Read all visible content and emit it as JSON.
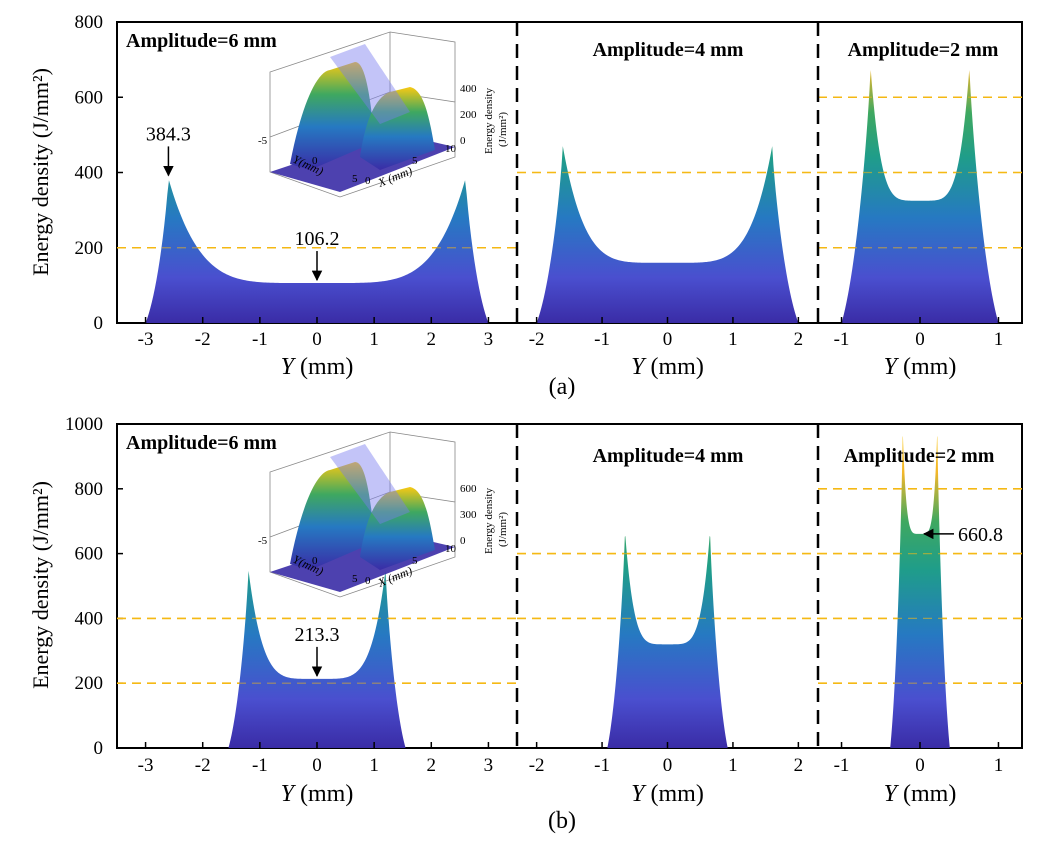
{
  "y_axis_label": "Energy density (J/mm²)",
  "x_axis_label_var": "Y",
  "x_axis_label_unit": " (mm)",
  "chart_data": [
    {
      "type": "area",
      "caption": "(a)",
      "ylim": [
        0,
        800
      ],
      "yticks": [
        "0",
        "200",
        "400",
        "600",
        "800"
      ],
      "panels": [
        {
          "title": "Amplitude=6 mm",
          "xlim": [
            -3.5,
            3.5
          ],
          "xticks": [
            "-3",
            "-2",
            "-1",
            "0",
            "1",
            "2",
            "3"
          ],
          "peak": {
            "x": 2.6,
            "y": 384.3
          },
          "center": {
            "x": 0,
            "y": 106.2
          },
          "edge": 3.0,
          "reference_lines": [
            200
          ],
          "annotations": [
            {
              "text": "384.3",
              "x": -2.6,
              "y": 384.3
            },
            {
              "text": "106.2",
              "x": 0,
              "y": 106.2
            }
          ],
          "inset": {
            "zlabel": "Energy density",
            "zunit": "(J/mm²)",
            "zticks": [
              "400",
              "200",
              "0"
            ],
            "ylabel": "Y(mm)",
            "xlabel": "X (mm)",
            "yticks": [
              "-5",
              "0",
              "5"
            ],
            "xticks": [
              "0",
              "5",
              "10"
            ]
          }
        },
        {
          "title": "Amplitude=4 mm",
          "xlim": [
            -2.3,
            2.3
          ],
          "xticks": [
            "-2",
            "-1",
            "0",
            "1",
            "2"
          ],
          "peak": {
            "x": 1.6,
            "y": 470
          },
          "center": {
            "x": 0,
            "y": 160
          },
          "edge": 2.0,
          "reference_lines": [
            400
          ]
        },
        {
          "title": "Amplitude=2 mm",
          "xlim": [
            -1.3,
            1.3
          ],
          "xticks": [
            "-1",
            "0",
            "1"
          ],
          "peak": {
            "x": 0.63,
            "y": 680
          },
          "center": {
            "x": 0,
            "y": 325
          },
          "edge": 1.0,
          "reference_lines": [
            200,
            400,
            600
          ]
        }
      ]
    },
    {
      "type": "area",
      "caption": "(b)",
      "ylim": [
        0,
        1000
      ],
      "yticks": [
        "0",
        "200",
        "400",
        "600",
        "800",
        "1000"
      ],
      "panels": [
        {
          "title": "Amplitude=6 mm",
          "xlim": [
            -3.5,
            3.5
          ],
          "xticks": [
            "-3",
            "-2",
            "-1",
            "0",
            "1",
            "2",
            "3"
          ],
          "peak": {
            "x": 1.2,
            "y": 550
          },
          "center": {
            "x": 0,
            "y": 213.3
          },
          "edge": 1.55,
          "reference_lines": [
            200,
            400
          ],
          "annotations": [
            {
              "text": "213.3",
              "x": 0,
              "y": 213.3
            }
          ],
          "inset": {
            "zlabel": "Energy density",
            "zunit": "(J/mm²)",
            "zticks": [
              "600",
              "300",
              "0"
            ],
            "ylabel": "Y(mm)",
            "xlabel": "X (mm)",
            "yticks": [
              "-5",
              "0",
              "5"
            ],
            "xticks": [
              "0",
              "5",
              "10"
            ]
          }
        },
        {
          "title": "Amplitude=4 mm",
          "xlim": [
            -2.3,
            2.3
          ],
          "xticks": [
            "-2",
            "-1",
            "0",
            "1",
            "2"
          ],
          "peak": {
            "x": 0.65,
            "y": 670
          },
          "center": {
            "x": 0,
            "y": 320
          },
          "edge": 0.92,
          "reference_lines": [
            400,
            600
          ]
        },
        {
          "title": "Amplitude=2 mm",
          "xlim": [
            -1.3,
            1.3
          ],
          "xticks": [
            "-1",
            "0",
            "1"
          ],
          "peak": {
            "x": 0.22,
            "y": 980
          },
          "center": {
            "x": 0,
            "y": 660.8
          },
          "edge": 0.38,
          "reference_lines": [
            200,
            400,
            600,
            800
          ],
          "annotations": [
            {
              "text": "660.8",
              "x": 0,
              "y": 660.8
            }
          ]
        }
      ]
    }
  ],
  "colors": {
    "gradient": [
      "#f9c913",
      "#f3b72a",
      "#3fa860",
      "#1f9d8a",
      "#2679c2",
      "#4a4fcf",
      "#3a2ca6"
    ],
    "reference_line": "#f5b915",
    "frame": "#000000"
  }
}
